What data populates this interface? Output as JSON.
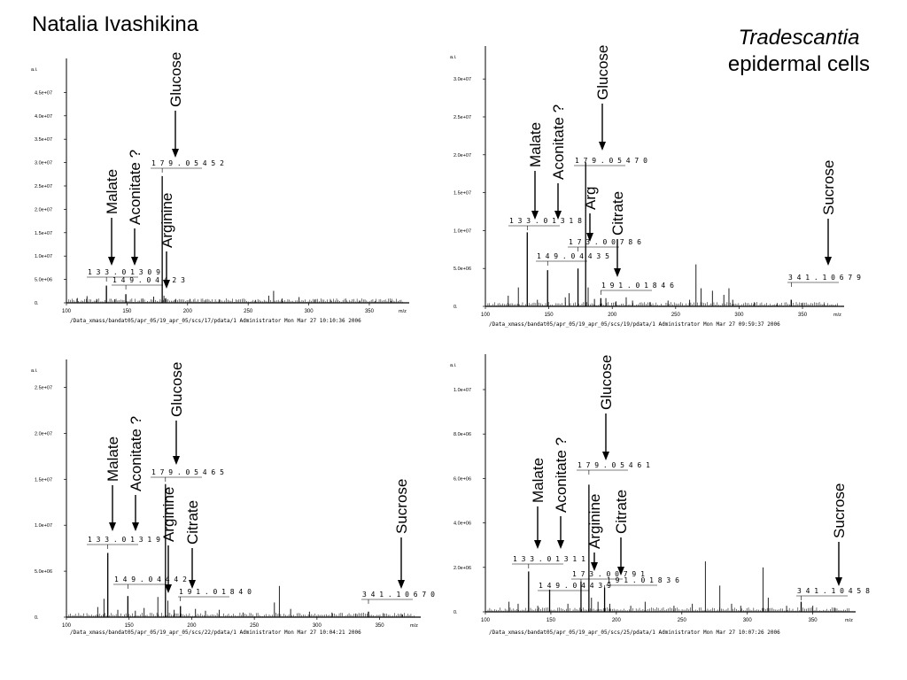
{
  "header": {
    "author": "Natalia Ivashikina",
    "title_italic": "Tradescantia",
    "title_plain": "epidermal cells"
  },
  "chart_data": [
    {
      "type": "bar",
      "ylabel": "a.i.",
      "xlabel": "m/z",
      "xlim": [
        100,
        380
      ],
      "ylim": [
        0,
        50000000
      ],
      "yticks": [
        "0.",
        "5.0e+06",
        "1.0e+07",
        "1.5e+07",
        "2.0e+07",
        "2.5e+07",
        "3.0e+07",
        "3.5e+07",
        "4.0e+07",
        "4.5e+07"
      ],
      "xticks": [
        "100",
        "150",
        "200",
        "250",
        "300",
        "350"
      ],
      "footer": "/Data_xmass/bandat05/apr_05/19_apr_05/scs/17/pdata/1   Administrator   Mon Mar 27 10:10:36 2006",
      "peaks": [
        {
          "label": "133.01309",
          "x": 133.01309,
          "y": 3600000
        },
        {
          "label": "149.04423",
          "x": 149.04423,
          "y": 1800000
        },
        {
          "label": "179.05452",
          "x": 179.05452,
          "y": 26500000
        }
      ],
      "noise": [
        [
          109,
          1000000
        ],
        [
          117,
          1400000
        ],
        [
          125,
          800000
        ],
        [
          140,
          700000
        ],
        [
          163,
          900000
        ],
        [
          172,
          1300000
        ],
        [
          180.5,
          1500000
        ],
        [
          182,
          1000000
        ],
        [
          190,
          700000
        ],
        [
          202,
          800000
        ],
        [
          215,
          500000
        ],
        [
          226,
          700000
        ],
        [
          256,
          600000
        ],
        [
          267,
          1500000
        ],
        [
          271,
          2500000
        ],
        [
          278,
          900000
        ],
        [
          292,
          1200000
        ],
        [
          305,
          700000
        ],
        [
          318,
          600000
        ],
        [
          331,
          500000
        ],
        [
          342,
          500000
        ],
        [
          355,
          400000
        ],
        [
          368,
          400000
        ]
      ],
      "annotations": [
        {
          "text": "Malate",
          "x": 133
        },
        {
          "text": "Aconitate ?",
          "x": 149
        },
        {
          "text": "Arginine",
          "x": 173
        },
        {
          "text": "Glucose",
          "x": 179
        }
      ]
    },
    {
      "type": "bar",
      "ylabel": "a.i.",
      "xlabel": "m/z",
      "xlim": [
        100,
        380
      ],
      "ylim": [
        0,
        31000000
      ],
      "yticks": [
        "0.",
        "5.0e+06",
        "1.0e+07",
        "1.5e+07",
        "2.0e+07",
        "2.5e+07",
        "3.0e+07"
      ],
      "xticks": [
        "100",
        "150",
        "200",
        "250",
        "300",
        "350"
      ],
      "footer": "/Data_xmass/bandat05/apr_05/19_apr_05/scs/19/pdata/1   Administrator   Mon Mar 27 09:59:37 2006",
      "peaks": [
        {
          "label": "133.01318",
          "x": 133.01318,
          "y": 9000000
        },
        {
          "label": "149.04435",
          "x": 149.04435,
          "y": 4400000
        },
        {
          "label": "173.00786",
          "x": 173.00786,
          "y": 4600000
        },
        {
          "label": "179.05470",
          "x": 179.0547,
          "y": 17500000
        },
        {
          "label": "191.01846",
          "x": 191.01846,
          "y": 1000000
        },
        {
          "label": "341.10679",
          "x": 341.10679,
          "y": 800000
        }
      ],
      "noise": [
        [
          118,
          1300000
        ],
        [
          126,
          2300000
        ],
        [
          141,
          800000
        ],
        [
          163,
          1100000
        ],
        [
          166,
          1600000
        ],
        [
          181,
          2300000
        ],
        [
          186,
          900000
        ],
        [
          195,
          1000000
        ],
        [
          203,
          600000
        ],
        [
          211,
          1100000
        ],
        [
          216,
          700000
        ],
        [
          230,
          500000
        ],
        [
          244,
          700000
        ],
        [
          261,
          800000
        ],
        [
          266,
          5100000
        ],
        [
          270,
          2200000
        ],
        [
          279,
          1900000
        ],
        [
          288,
          1400000
        ],
        [
          292,
          2200000
        ],
        [
          295,
          800000
        ],
        [
          312,
          500000
        ],
        [
          330,
          400000
        ],
        [
          350,
          400000
        ],
        [
          367,
          300000
        ]
      ],
      "annotations": [
        {
          "text": "Malate",
          "x": 133
        },
        {
          "text": "Aconitate ?",
          "x": 149
        },
        {
          "text": "Arg",
          "x": 173
        },
        {
          "text": "Glucose",
          "x": 179
        },
        {
          "text": "Citrate",
          "x": 191
        },
        {
          "text": "Sucrose",
          "x": 341
        }
      ]
    },
    {
      "type": "bar",
      "ylabel": "a.i.",
      "xlabel": "m/z",
      "xlim": [
        100,
        380
      ],
      "ylim": [
        0,
        27500000
      ],
      "yticks": [
        "0.",
        "5.0e+06",
        "1.0e+07",
        "1.5e+07",
        "2.0e+07",
        "2.5e+07"
      ],
      "xticks": [
        "100",
        "150",
        "200",
        "250",
        "300",
        "350"
      ],
      "footer": "/Data_xmass/bandat05/apr_05/19_apr_05/scs/22/pdata/1   Administrator   Mon Mar 27 10:04:21 2006",
      "peaks": [
        {
          "label": "133.01319",
          "x": 133.01319,
          "y": 7000000
        },
        {
          "label": "149.04442",
          "x": 149.04442,
          "y": 2300000
        },
        {
          "label": "179.05465",
          "x": 179.05465,
          "y": 14500000
        },
        {
          "label": "191.01840",
          "x": 191.0184,
          "y": 1200000
        },
        {
          "label": "341.10670",
          "x": 341.1067,
          "y": 600000
        }
      ],
      "noise": [
        [
          125,
          1100000
        ],
        [
          130,
          2000000
        ],
        [
          141,
          800000
        ],
        [
          155,
          700000
        ],
        [
          162,
          1000000
        ],
        [
          173,
          2200000
        ],
        [
          181,
          1800000
        ],
        [
          186,
          800000
        ],
        [
          203,
          900000
        ],
        [
          211,
          700000
        ],
        [
          222,
          800000
        ],
        [
          241,
          500000
        ],
        [
          266,
          1600000
        ],
        [
          270,
          3400000
        ],
        [
          279,
          900000
        ],
        [
          294,
          600000
        ],
        [
          312,
          500000
        ],
        [
          331,
          400000
        ],
        [
          353,
          400000
        ],
        [
          368,
          300000
        ]
      ],
      "annotations": [
        {
          "text": "Malate",
          "x": 133
        },
        {
          "text": "Aconitate ?",
          "x": 149
        },
        {
          "text": "Arginine",
          "x": 173
        },
        {
          "text": "Glucose",
          "x": 179
        },
        {
          "text": "Citrate",
          "x": 191
        },
        {
          "text": "Sucrose",
          "x": 341
        }
      ]
    },
    {
      "type": "bar",
      "ylabel": "a.i.",
      "xlabel": "m/z",
      "xlim": [
        100,
        380
      ],
      "ylim": [
        0,
        12500000
      ],
      "yticks": [
        "0.",
        "2.0e+06",
        "4.0e+06",
        "6.0e+06",
        "8.0e+06",
        "1.0e+07"
      ],
      "xticks": [
        "100",
        "150",
        "200",
        "250",
        "300",
        "350"
      ],
      "footer": "/Data_xmass/bandat05/apr_05/19_apr_05/scs/25/pdata/1   Administrator   Mon Mar 27 10:07:26 2006",
      "peaks": [
        {
          "label": "133.01311",
          "x": 133.01311,
          "y": 2000000
        },
        {
          "label": "149.04439",
          "x": 149.04439,
          "y": 1100000
        },
        {
          "label": "173.00791",
          "x": 173.00791,
          "y": 1500000
        },
        {
          "label": "179.05461",
          "x": 179.05461,
          "y": 6300000
        },
        {
          "label": "191.01836",
          "x": 191.01836,
          "y": 1200000
        },
        {
          "label": "341.10458",
          "x": 341.10458,
          "y": 500000
        }
      ],
      "noise": [
        [
          118,
          500000
        ],
        [
          125,
          400000
        ],
        [
          140,
          300000
        ],
        [
          163,
          400000
        ],
        [
          181,
          700000
        ],
        [
          186,
          500000
        ],
        [
          195,
          400000
        ],
        [
          211,
          300000
        ],
        [
          222,
          500000
        ],
        [
          244,
          300000
        ],
        [
          258,
          400000
        ],
        [
          268,
          2500000
        ],
        [
          279,
          1300000
        ],
        [
          288,
          400000
        ],
        [
          295,
          300000
        ],
        [
          312,
          2200000
        ],
        [
          316,
          700000
        ],
        [
          330,
          300000
        ],
        [
          350,
          300000
        ],
        [
          367,
          200000
        ]
      ],
      "annotations": [
        {
          "text": "Malate",
          "x": 133
        },
        {
          "text": "Aconitate ?",
          "x": 149
        },
        {
          "text": "Arginine",
          "x": 173
        },
        {
          "text": "Glucose",
          "x": 179
        },
        {
          "text": "Citrate",
          "x": 191
        },
        {
          "text": "Sucrose",
          "x": 341
        }
      ]
    }
  ]
}
